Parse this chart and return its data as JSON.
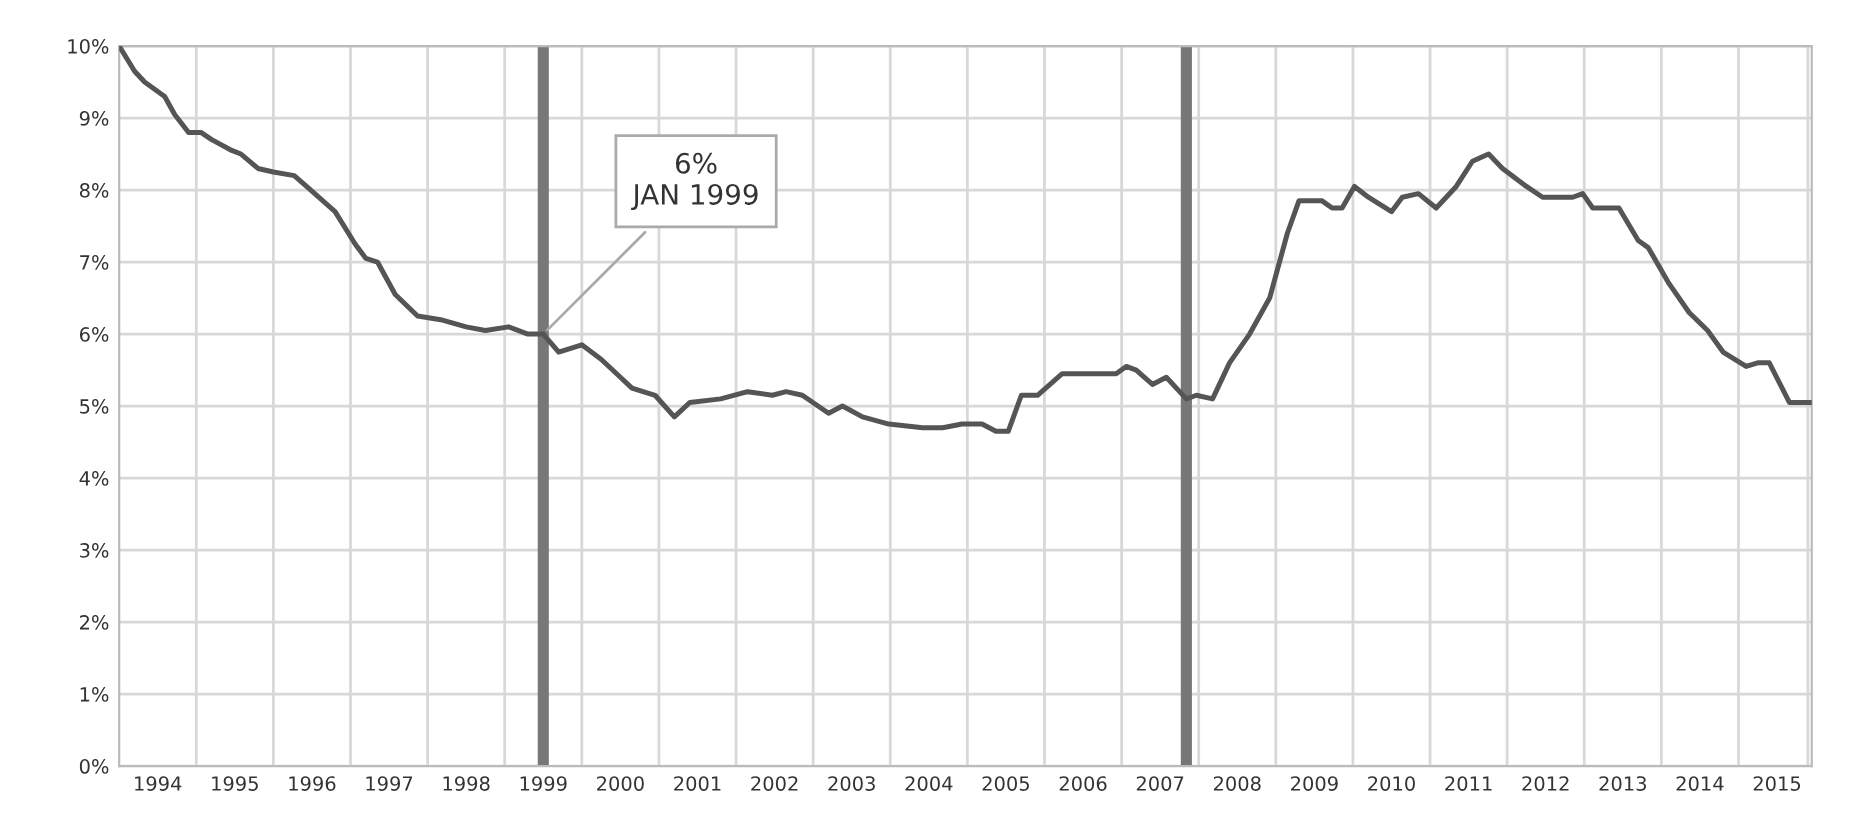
{
  "chart_data": {
    "type": "line",
    "x": [
      1993.5,
      1993.7,
      1993.83,
      1994.09,
      1994.22,
      1994.4,
      1994.56,
      1994.7,
      1994.96,
      1995.08,
      1995.3,
      1995.5,
      1995.77,
      1995.93,
      1996.3,
      1996.56,
      1996.7,
      1996.85,
      1997.08,
      1997.37,
      1997.67,
      1998.0,
      1998.25,
      1998.55,
      1998.8,
      1999.0,
      1999.2,
      1999.5,
      1999.75,
      2000.0,
      2000.15,
      2000.45,
      2000.7,
      2000.9,
      2001.3,
      2001.65,
      2001.97,
      2002.15,
      2002.36,
      2002.7,
      2002.88,
      2003.14,
      2003.48,
      2003.92,
      2004.18,
      2004.43,
      2004.69,
      2004.87,
      2005.03,
      2005.2,
      2005.41,
      2005.73,
      2006.43,
      2006.56,
      2006.69,
      2006.9,
      2007.08,
      2007.34,
      2007.47,
      2007.68,
      2007.9,
      2008.16,
      2008.42,
      2008.65,
      2008.8,
      2009.1,
      2009.23,
      2009.36,
      2009.52,
      2009.7,
      2010.0,
      2010.14,
      2010.35,
      2010.58,
      2010.84,
      2011.05,
      2011.26,
      2011.44,
      2011.75,
      2011.96,
      2012.35,
      2012.48,
      2012.61,
      2012.95,
      2013.2,
      2013.33,
      2013.6,
      2013.86,
      2014.1,
      2014.3,
      2014.6,
      2014.75,
      2014.9,
      2015.16,
      2015.45
    ],
    "series": [
      {
        "color": "#555555",
        "values": [
          10.0,
          9.65,
          9.5,
          9.3,
          9.05,
          8.8,
          8.8,
          8.7,
          8.55,
          8.5,
          8.3,
          8.25,
          8.2,
          8.05,
          7.7,
          7.25,
          7.05,
          7.0,
          6.55,
          6.25,
          6.2,
          6.1,
          6.05,
          6.1,
          6.0,
          6.0,
          5.75,
          5.85,
          5.65,
          5.4,
          5.25,
          5.15,
          4.85,
          5.05,
          5.1,
          5.2,
          5.15,
          5.2,
          5.15,
          4.9,
          5.0,
          4.85,
          4.75,
          4.7,
          4.7,
          4.75,
          4.75,
          4.65,
          4.65,
          5.15,
          5.15,
          5.45,
          5.45,
          5.55,
          5.5,
          5.3,
          5.4,
          5.1,
          5.15,
          5.1,
          5.6,
          6.0,
          6.5,
          7.4,
          7.85,
          7.85,
          7.75,
          7.75,
          8.05,
          7.9,
          7.7,
          7.9,
          7.95,
          7.75,
          8.05,
          8.4,
          8.5,
          8.3,
          8.05,
          7.9,
          7.9,
          7.95,
          7.75,
          7.75,
          7.3,
          7.2,
          6.7,
          6.3,
          6.05,
          5.75,
          5.55,
          5.6,
          5.6,
          5.05,
          5.05
        ]
      }
    ],
    "xlim": [
      1993.5,
      2015.45
    ],
    "xticks": [
      {
        "value": 1994,
        "label": "1994"
      },
      {
        "value": 1994.5,
        "label": null
      },
      {
        "value": 1995,
        "label": "1995"
      },
      {
        "value": 1995.5,
        "label": null
      },
      {
        "value": 1996,
        "label": "1996"
      },
      {
        "value": 1996.5,
        "label": null
      },
      {
        "value": 1997,
        "label": "1997"
      },
      {
        "value": 1997.5,
        "label": null
      },
      {
        "value": 1998,
        "label": "1998"
      },
      {
        "value": 1998.5,
        "label": null
      },
      {
        "value": 1999,
        "label": "1999"
      },
      {
        "value": 1999.5,
        "label": null
      },
      {
        "value": 2000,
        "label": "2000"
      },
      {
        "value": 2000.5,
        "label": null
      },
      {
        "value": 2001,
        "label": "2001"
      },
      {
        "value": 2001.5,
        "label": null
      },
      {
        "value": 2002,
        "label": "2002"
      },
      {
        "value": 2002.5,
        "label": null
      },
      {
        "value": 2003,
        "label": "2003"
      },
      {
        "value": 2003.5,
        "label": null
      },
      {
        "value": 2004,
        "label": "2004"
      },
      {
        "value": 2004.5,
        "label": null
      },
      {
        "value": 2005,
        "label": "2005"
      },
      {
        "value": 2005.5,
        "label": null
      },
      {
        "value": 2006,
        "label": "2006"
      },
      {
        "value": 2006.5,
        "label": null
      },
      {
        "value": 2007,
        "label": "2007"
      },
      {
        "value": 2007.5,
        "label": null
      },
      {
        "value": 2008,
        "label": "2008"
      },
      {
        "value": 2008.5,
        "label": null
      },
      {
        "value": 2009,
        "label": "2009"
      },
      {
        "value": 2009.5,
        "label": null
      },
      {
        "value": 2010,
        "label": "2010"
      },
      {
        "value": 2010.5,
        "label": null
      },
      {
        "value": 2011,
        "label": "2011"
      },
      {
        "value": 2011.5,
        "label": null
      },
      {
        "value": 2012,
        "label": "2012"
      },
      {
        "value": 2012.5,
        "label": null
      },
      {
        "value": 2013,
        "label": "2013"
      },
      {
        "value": 2013.5,
        "label": null
      },
      {
        "value": 2014,
        "label": "2014"
      },
      {
        "value": 2014.5,
        "label": null
      },
      {
        "value": 2015,
        "label": "2015"
      },
      {
        "value": 2015.4,
        "label": null
      }
    ],
    "ylim": [
      0,
      10
    ],
    "yticks": [
      {
        "value": 0,
        "label": "0%"
      },
      {
        "value": 1,
        "label": "1%"
      },
      {
        "value": 2,
        "label": "2%"
      },
      {
        "value": 3,
        "label": "3%"
      },
      {
        "value": 4,
        "label": "4%"
      },
      {
        "value": 5,
        "label": "5%"
      },
      {
        "value": 6,
        "label": "6%"
      },
      {
        "value": 7,
        "label": "7%"
      },
      {
        "value": 8,
        "label": "8%"
      },
      {
        "value": 9,
        "label": "9%"
      },
      {
        "value": 10,
        "label": "10%"
      }
    ],
    "ref_lines": [
      {
        "axis": "x",
        "value": 1999.0,
        "color": "#777777"
      },
      {
        "axis": "x",
        "value": 2007.34,
        "color": "#777777"
      }
    ],
    "annotations": [
      {
        "text": "6%\nJAN 1999",
        "x": 1999.0,
        "y": 6.0
      }
    ],
    "grid": true,
    "line_style": "solid"
  }
}
